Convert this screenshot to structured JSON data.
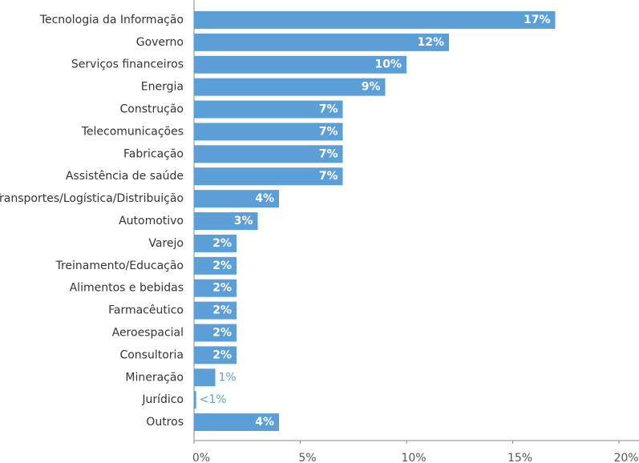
{
  "chart_data": {
    "type": "bar",
    "orientation": "horizontal",
    "categories": [
      "Tecnologia da Informação",
      "Governo",
      "Serviços financeiros",
      "Energia",
      "Construção",
      "Telecomunicações",
      "Fabricação",
      "Assistência de saúde",
      "Transportes/Logística/Distribuição",
      "Automotivo",
      "Varejo",
      "Treinamento/Educação",
      "Alimentos e bebidas",
      "Farmacêutico",
      "Aeroespacial",
      "Consultoria",
      "Mineração",
      "Jurídico",
      "Outros"
    ],
    "values": [
      17,
      12,
      10,
      9,
      7,
      7,
      7,
      7,
      4,
      3,
      2,
      2,
      2,
      2,
      2,
      2,
      1,
      0.1,
      4
    ],
    "value_labels": [
      "17%",
      "12%",
      "10%",
      "9%",
      "7%",
      "7%",
      "7%",
      "7%",
      "4%",
      "3%",
      "2%",
      "2%",
      "2%",
      "2%",
      "2%",
      "2%",
      "1%",
      "<1%",
      "4%"
    ],
    "color": "#5b9fd6",
    "xlim": [
      0,
      20
    ],
    "xticks": [
      {
        "value": 0,
        "label": "0%"
      },
      {
        "value": 5,
        "label": "5%"
      },
      {
        "value": 10,
        "label": "10%"
      },
      {
        "value": 15,
        "label": "15%"
      },
      {
        "value": 20,
        "label": "20%"
      }
    ]
  }
}
